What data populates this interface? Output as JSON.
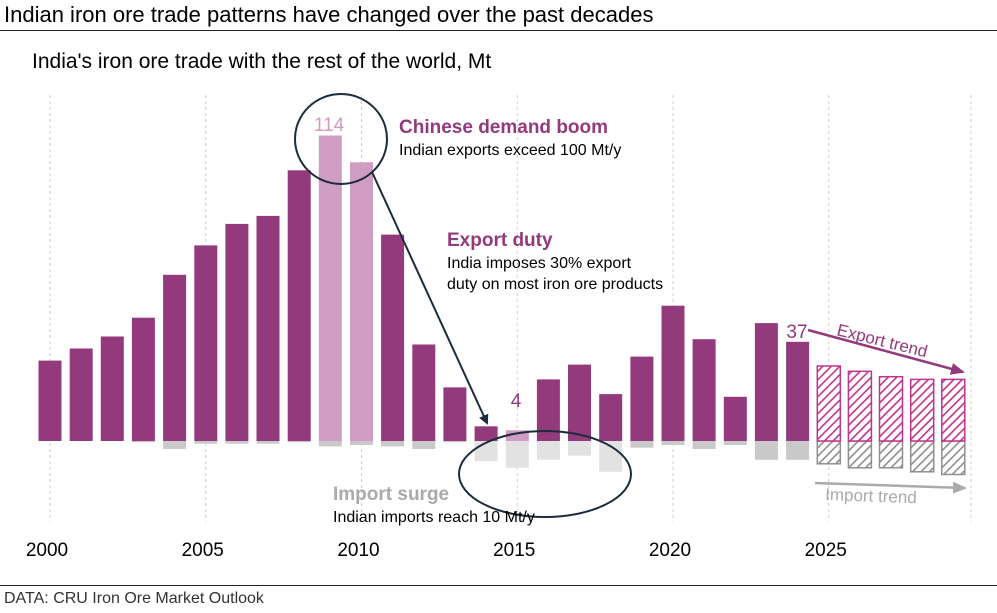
{
  "headline": "Indian iron ore trade patterns have changed over the past decades",
  "subtitle": "India's iron ore trade with the rest of the world, Mt",
  "source": "DATA: CRU Iron Ore Market Outlook",
  "colors": {
    "export": "#933a7c",
    "export_highlight": "#cf9cc3",
    "export_forecast": "#c2338e",
    "import": "#c9c9c9",
    "import_highlight": "#e2e2e2",
    "import_forecast": "#8f8f8f",
    "import_text": "#aaaaaa",
    "annotation": "#933a7c",
    "arrow": "#1d2c3c"
  },
  "chart_data": {
    "type": "bar",
    "title": "India's iron ore trade with the rest of the world, Mt",
    "xlabel": "",
    "ylabel": "Mt",
    "ylim": [
      -10,
      120
    ],
    "categories": [
      2000,
      2001,
      2002,
      2003,
      2004,
      2005,
      2006,
      2007,
      2008,
      2009,
      2010,
      2011,
      2012,
      2013,
      2014,
      2015,
      2016,
      2017,
      2018,
      2019,
      2020,
      2021,
      2022,
      2023,
      2024,
      2025,
      2026,
      2027,
      2028,
      2029
    ],
    "x_tick_labels": [
      "2000",
      "2005",
      "2010",
      "2015",
      "2020",
      "2025"
    ],
    "forecast_from": 2025,
    "series": [
      {
        "name": "Exports",
        "values": [
          30,
          34.5,
          39,
          46,
          62,
          73,
          81,
          84,
          101,
          114,
          104,
          77,
          36,
          20,
          5.5,
          4,
          23,
          28.5,
          17.5,
          31.5,
          50.5,
          38,
          16.5,
          44,
          37,
          28,
          26,
          24,
          23,
          23
        ]
      },
      {
        "name": "Imports",
        "values": [
          0,
          0,
          0,
          -0.5,
          -3,
          -1,
          -1,
          -1,
          -0.5,
          -2,
          -1.5,
          -2,
          -3,
          -0.5,
          -7.5,
          -10,
          -7,
          -5.5,
          -11.5,
          -2.5,
          -1.5,
          -3,
          -1.5,
          -7,
          -7,
          -8.5,
          -10,
          -10,
          -11.5,
          -12.5
        ]
      }
    ],
    "data_labels": {
      "peak_export": "114",
      "low_export": "4",
      "latest_export": "37"
    },
    "highlights": {
      "export": [
        2009,
        2010,
        2015
      ],
      "import": [
        2014,
        2015,
        2016,
        2017,
        2018
      ]
    },
    "annotations": {
      "boom_title": "Chinese demand boom",
      "boom_text": "Indian exports exceed 100 Mt/y",
      "duty_title": "Export duty",
      "duty_line1": "India imposes 30% export",
      "duty_line2": "duty on most iron ore products",
      "surge_title": "Import surge",
      "surge_text": "Indian imports reach 10 Mt/y",
      "export_trend": "Export trend",
      "import_trend": "Import trend"
    }
  }
}
